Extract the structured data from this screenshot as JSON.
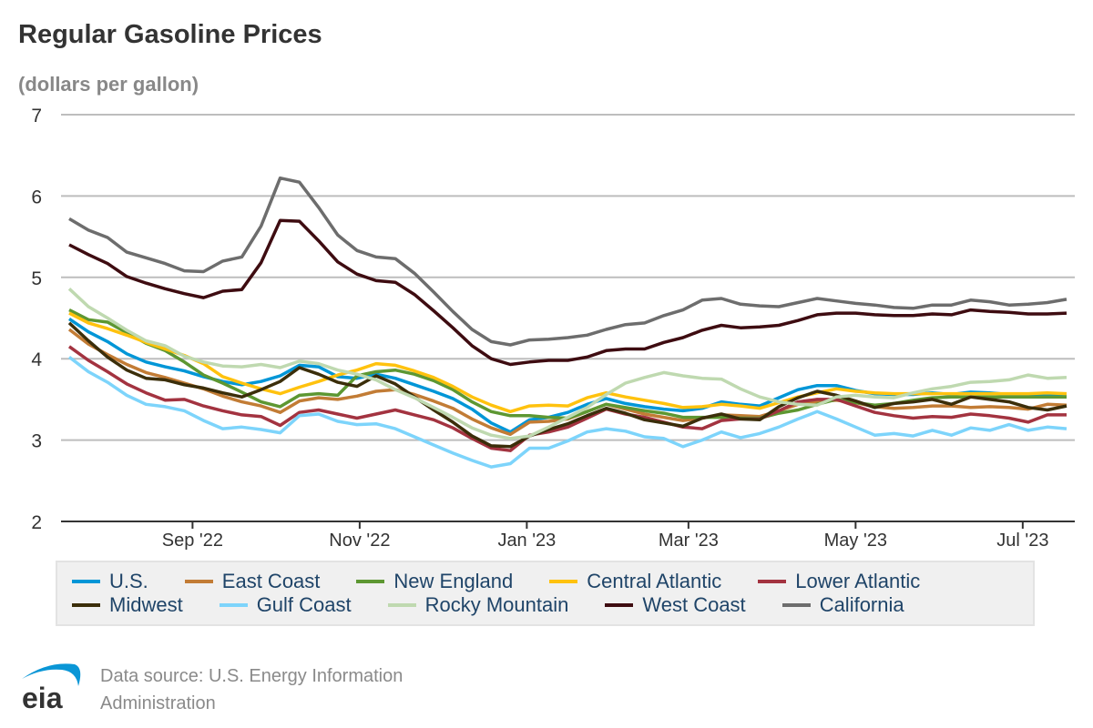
{
  "title": "Regular Gasoline Prices",
  "subtitle": "(dollars per gallon)",
  "source_line1": "Data source: U.S. Energy Information",
  "source_line2": "Administration",
  "logo_text": "eia",
  "chart_data": {
    "type": "line",
    "title": "Regular Gasoline Prices",
    "ylabel": "(dollars per gallon)",
    "ylim": [
      2,
      7
    ],
    "yticks": [
      2,
      3,
      4,
      5,
      6,
      7
    ],
    "xlim": [
      "2022-07-15",
      "2023-07-20"
    ],
    "xticks": [
      {
        "date": "2022-09-01",
        "label": "Sep '22"
      },
      {
        "date": "2022-11-01",
        "label": "Nov '22"
      },
      {
        "date": "2023-01-01",
        "label": "Jan '23"
      },
      {
        "date": "2023-03-01",
        "label": "Mar '23"
      },
      {
        "date": "2023-05-01",
        "label": "May '23"
      },
      {
        "date": "2023-07-01",
        "label": "Jul '23"
      }
    ],
    "grid": true,
    "legend_position": "bottom",
    "x": [
      "2022-07-18",
      "2022-07-25",
      "2022-08-01",
      "2022-08-08",
      "2022-08-15",
      "2022-08-22",
      "2022-08-29",
      "2022-09-05",
      "2022-09-12",
      "2022-09-19",
      "2022-09-26",
      "2022-10-03",
      "2022-10-10",
      "2022-10-17",
      "2022-10-24",
      "2022-10-31",
      "2022-11-07",
      "2022-11-14",
      "2022-11-21",
      "2022-11-28",
      "2022-12-05",
      "2022-12-12",
      "2022-12-19",
      "2022-12-26",
      "2023-01-02",
      "2023-01-09",
      "2023-01-16",
      "2023-01-23",
      "2023-01-30",
      "2023-02-06",
      "2023-02-13",
      "2023-02-20",
      "2023-02-27",
      "2023-03-06",
      "2023-03-13",
      "2023-03-20",
      "2023-03-27",
      "2023-04-03",
      "2023-04-10",
      "2023-04-17",
      "2023-04-24",
      "2023-05-01",
      "2023-05-08",
      "2023-05-15",
      "2023-05-22",
      "2023-05-29",
      "2023-06-05",
      "2023-06-12",
      "2023-06-19",
      "2023-06-26",
      "2023-07-03",
      "2023-07-10",
      "2023-07-17"
    ],
    "series": [
      {
        "name": "U.S.",
        "color": "#0096d7",
        "values": [
          4.49,
          4.33,
          4.21,
          4.06,
          3.96,
          3.9,
          3.85,
          3.78,
          3.72,
          3.68,
          3.72,
          3.79,
          3.92,
          3.9,
          3.78,
          3.76,
          3.81,
          3.76,
          3.68,
          3.6,
          3.51,
          3.38,
          3.21,
          3.1,
          3.25,
          3.28,
          3.34,
          3.44,
          3.51,
          3.45,
          3.41,
          3.38,
          3.36,
          3.39,
          3.47,
          3.44,
          3.42,
          3.52,
          3.62,
          3.67,
          3.67,
          3.61,
          3.57,
          3.56,
          3.56,
          3.58,
          3.56,
          3.59,
          3.58,
          3.56,
          3.56,
          3.55,
          3.56
        ]
      },
      {
        "name": "East Coast",
        "color": "#c27c35",
        "values": [
          4.36,
          4.18,
          4.05,
          3.93,
          3.83,
          3.77,
          3.7,
          3.63,
          3.54,
          3.47,
          3.42,
          3.34,
          3.48,
          3.52,
          3.5,
          3.54,
          3.6,
          3.62,
          3.56,
          3.48,
          3.39,
          3.26,
          3.15,
          3.07,
          3.22,
          3.23,
          3.26,
          3.35,
          3.44,
          3.38,
          3.32,
          3.28,
          3.24,
          3.27,
          3.31,
          3.3,
          3.29,
          3.36,
          3.44,
          3.47,
          3.49,
          3.46,
          3.41,
          3.39,
          3.4,
          3.42,
          3.42,
          3.4,
          3.41,
          3.4,
          3.38,
          3.44,
          3.43
        ]
      },
      {
        "name": "New England",
        "color": "#5d9732",
        "values": [
          4.6,
          4.48,
          4.45,
          4.32,
          4.19,
          4.1,
          3.96,
          3.8,
          3.7,
          3.59,
          3.47,
          3.41,
          3.55,
          3.57,
          3.55,
          3.79,
          3.84,
          3.86,
          3.81,
          3.73,
          3.62,
          3.47,
          3.35,
          3.3,
          3.3,
          3.28,
          3.27,
          3.35,
          3.44,
          3.4,
          3.36,
          3.33,
          3.28,
          3.28,
          3.28,
          3.27,
          3.27,
          3.33,
          3.37,
          3.44,
          3.5,
          3.46,
          3.43,
          3.45,
          3.49,
          3.52,
          3.53,
          3.53,
          3.53,
          3.53,
          3.53,
          3.53,
          3.53
        ]
      },
      {
        "name": "Central Atlantic",
        "color": "#ffc20e",
        "values": [
          4.56,
          4.44,
          4.37,
          4.29,
          4.2,
          4.12,
          4.04,
          3.94,
          3.78,
          3.7,
          3.63,
          3.57,
          3.65,
          3.72,
          3.8,
          3.86,
          3.94,
          3.92,
          3.85,
          3.77,
          3.66,
          3.53,
          3.43,
          3.35,
          3.42,
          3.43,
          3.42,
          3.52,
          3.58,
          3.53,
          3.49,
          3.45,
          3.4,
          3.41,
          3.44,
          3.42,
          3.39,
          3.46,
          3.53,
          3.58,
          3.63,
          3.6,
          3.58,
          3.57,
          3.57,
          3.57,
          3.57,
          3.57,
          3.57,
          3.57,
          3.57,
          3.58,
          3.57
        ]
      },
      {
        "name": "Lower Atlantic",
        "color": "#a33340",
        "values": [
          4.15,
          3.98,
          3.84,
          3.69,
          3.58,
          3.49,
          3.5,
          3.42,
          3.36,
          3.31,
          3.29,
          3.18,
          3.34,
          3.37,
          3.32,
          3.27,
          3.32,
          3.37,
          3.31,
          3.25,
          3.15,
          3.02,
          2.9,
          2.87,
          3.06,
          3.1,
          3.16,
          3.27,
          3.38,
          3.32,
          3.28,
          3.22,
          3.16,
          3.14,
          3.24,
          3.26,
          3.26,
          3.36,
          3.47,
          3.5,
          3.5,
          3.42,
          3.34,
          3.3,
          3.27,
          3.29,
          3.28,
          3.32,
          3.3,
          3.27,
          3.22,
          3.31,
          3.31
        ]
      },
      {
        "name": "Midwest",
        "color": "#3b2e0a",
        "values": [
          4.44,
          4.22,
          4.02,
          3.86,
          3.76,
          3.74,
          3.68,
          3.64,
          3.58,
          3.53,
          3.62,
          3.72,
          3.89,
          3.81,
          3.71,
          3.66,
          3.79,
          3.69,
          3.53,
          3.37,
          3.22,
          3.05,
          2.93,
          2.92,
          3.05,
          3.13,
          3.2,
          3.3,
          3.39,
          3.33,
          3.25,
          3.21,
          3.17,
          3.27,
          3.32,
          3.26,
          3.25,
          3.41,
          3.52,
          3.6,
          3.55,
          3.48,
          3.4,
          3.45,
          3.47,
          3.5,
          3.44,
          3.53,
          3.5,
          3.47,
          3.4,
          3.37,
          3.42
        ]
      },
      {
        "name": "Gulf Coast",
        "color": "#7dd4fb",
        "values": [
          4.02,
          3.84,
          3.71,
          3.55,
          3.44,
          3.41,
          3.36,
          3.24,
          3.14,
          3.16,
          3.13,
          3.09,
          3.3,
          3.32,
          3.23,
          3.19,
          3.2,
          3.14,
          3.04,
          2.94,
          2.84,
          2.75,
          2.67,
          2.71,
          2.9,
          2.9,
          2.99,
          3.1,
          3.14,
          3.11,
          3.04,
          3.02,
          2.92,
          3.0,
          3.1,
          3.03,
          3.08,
          3.16,
          3.26,
          3.35,
          3.26,
          3.16,
          3.06,
          3.08,
          3.05,
          3.12,
          3.06,
          3.15,
          3.12,
          3.19,
          3.12,
          3.16,
          3.14
        ]
      },
      {
        "name": "Rocky Mountain",
        "color": "#bfd9b0",
        "values": [
          4.86,
          4.64,
          4.5,
          4.35,
          4.22,
          4.16,
          4.03,
          3.96,
          3.91,
          3.9,
          3.93,
          3.89,
          3.97,
          3.94,
          3.86,
          3.81,
          3.74,
          3.62,
          3.52,
          3.4,
          3.28,
          3.15,
          3.06,
          3.02,
          3.05,
          3.16,
          3.28,
          3.4,
          3.56,
          3.7,
          3.77,
          3.83,
          3.79,
          3.76,
          3.75,
          3.63,
          3.53,
          3.47,
          3.44,
          3.43,
          3.53,
          3.55,
          3.53,
          3.52,
          3.58,
          3.63,
          3.66,
          3.71,
          3.72,
          3.74,
          3.8,
          3.76,
          3.77
        ]
      },
      {
        "name": "West Coast",
        "color": "#3e0c11",
        "values": [
          5.4,
          5.28,
          5.17,
          5.01,
          4.93,
          4.86,
          4.8,
          4.75,
          4.83,
          4.85,
          5.18,
          5.7,
          5.69,
          5.45,
          5.19,
          5.04,
          4.96,
          4.94,
          4.79,
          4.59,
          4.38,
          4.16,
          4.0,
          3.93,
          3.96,
          3.98,
          3.98,
          4.02,
          4.1,
          4.12,
          4.12,
          4.2,
          4.26,
          4.35,
          4.41,
          4.38,
          4.39,
          4.41,
          4.47,
          4.54,
          4.56,
          4.56,
          4.54,
          4.53,
          4.53,
          4.55,
          4.54,
          4.6,
          4.58,
          4.57,
          4.55,
          4.55,
          4.56
        ]
      },
      {
        "name": "California",
        "color": "#6d6d6d",
        "values": [
          5.72,
          5.58,
          5.49,
          5.31,
          5.24,
          5.17,
          5.08,
          5.07,
          5.2,
          5.25,
          5.63,
          6.22,
          6.17,
          5.86,
          5.52,
          5.33,
          5.25,
          5.23,
          5.05,
          4.82,
          4.58,
          4.36,
          4.21,
          4.17,
          4.23,
          4.24,
          4.26,
          4.29,
          4.36,
          4.42,
          4.44,
          4.53,
          4.6,
          4.72,
          4.74,
          4.67,
          4.65,
          4.64,
          4.69,
          4.74,
          4.71,
          4.68,
          4.66,
          4.63,
          4.62,
          4.66,
          4.66,
          4.72,
          4.7,
          4.66,
          4.67,
          4.69,
          4.73
        ]
      }
    ]
  }
}
